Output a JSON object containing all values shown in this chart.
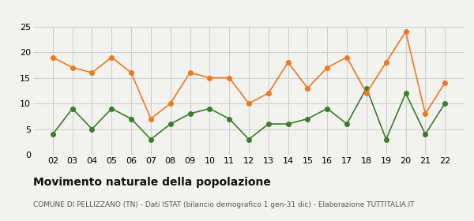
{
  "years": [
    "02",
    "03",
    "04",
    "05",
    "06",
    "07",
    "08",
    "09",
    "10",
    "11",
    "12",
    "13",
    "14",
    "15",
    "16",
    "17",
    "18",
    "19",
    "20",
    "21",
    "22"
  ],
  "nascite": [
    4,
    9,
    5,
    9,
    7,
    3,
    6,
    8,
    9,
    7,
    3,
    6,
    6,
    7,
    9,
    6,
    13,
    3,
    12,
    4,
    10
  ],
  "decessi": [
    19,
    17,
    16,
    19,
    16,
    7,
    10,
    16,
    15,
    15,
    10,
    12,
    18,
    13,
    17,
    19,
    12,
    18,
    24,
    8,
    14
  ],
  "nascite_color": "#3a7d2c",
  "decessi_color": "#f07820",
  "background_color": "#f2f2ee",
  "grid_color": "#cccccc",
  "title": "Movimento naturale della popolazione",
  "subtitle": "COMUNE DI PELLIZZANO (TN) - Dati ISTAT (bilancio demografico 1 gen-31 dic) - Elaborazione TUTTITALIA.IT",
  "ylim": [
    0,
    25
  ],
  "yticks": [
    0,
    5,
    10,
    15,
    20,
    25
  ],
  "title_fontsize": 10,
  "subtitle_fontsize": 6.5,
  "legend_fontsize": 9,
  "tick_fontsize": 8
}
